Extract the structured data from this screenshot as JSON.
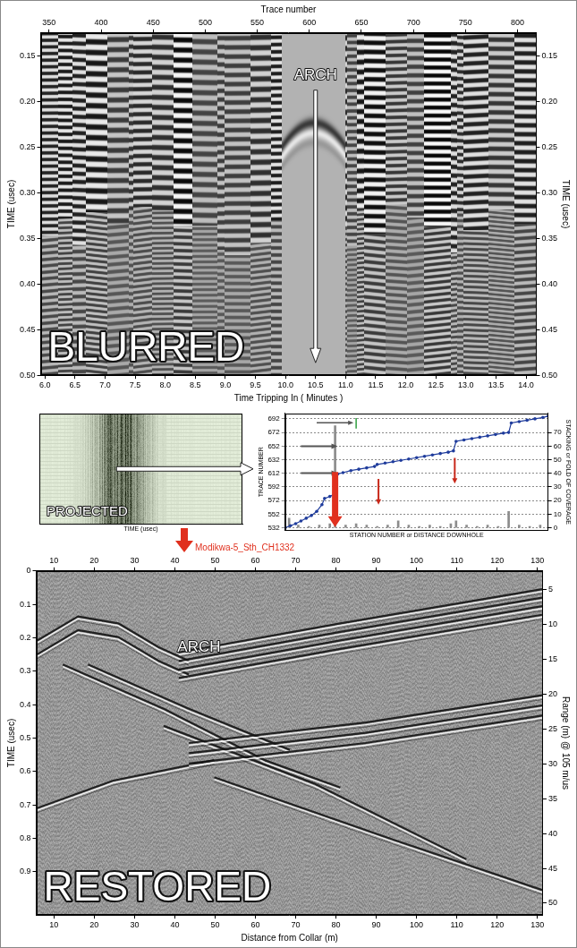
{
  "chart_data": [
    {
      "type": "image",
      "title": "BLURRED",
      "x_label": "Time Tripping In ( Minutes )",
      "x2_label": "Trace number",
      "y_label": "TIME (usec)",
      "y2_label": "TIME (usec)",
      "xlim": [
        5.93,
        14.17
      ],
      "xticks": [
        {
          "value": 6,
          "label": "6.0"
        },
        6.5,
        {
          "value": 7,
          "label": "7.0"
        },
        7.5,
        {
          "value": 8,
          "label": "8.0"
        },
        8.5,
        {
          "value": 9,
          "label": "9.0"
        },
        9.5,
        {
          "value": 10,
          "label": "10.0"
        },
        10.5,
        {
          "value": 11,
          "label": "11.0"
        },
        11.5,
        {
          "value": 12,
          "label": "12.0"
        },
        12.5,
        {
          "value": 13,
          "label": "13.0"
        },
        13.5,
        {
          "value": 14,
          "label": "14.0"
        }
      ],
      "x2lim": [
        342,
        818
      ],
      "x2ticks": [
        350,
        400,
        450,
        500,
        550,
        600,
        650,
        700,
        750,
        800
      ],
      "ylim": [
        0.125,
        0.5
      ],
      "yticks": [
        0.15,
        {
          "value": 0.2,
          "label": "0.20"
        },
        0.25,
        {
          "value": 0.3,
          "label": "0.30"
        },
        0.35,
        {
          "value": 0.4,
          "label": "0.40"
        },
        0.45,
        {
          "value": 0.5,
          "label": "0.50"
        }
      ],
      "y2lim": [
        0.125,
        0.5
      ],
      "y2ticks": [
        0.15,
        {
          "value": 0.2,
          "label": "0.20"
        },
        0.25,
        {
          "value": 0.3,
          "label": "0.30"
        },
        0.35,
        {
          "value": 0.4,
          "label": "0.40"
        },
        0.45,
        {
          "value": 0.5,
          "label": "0.50"
        }
      ],
      "annotations": [
        {
          "text": "ARCH",
          "x": 10.5,
          "y": 0.172
        }
      ]
    },
    {
      "type": "image",
      "title": "PROJECTED",
      "x_label": "TIME (usec)",
      "tick_labels": false
    },
    {
      "type": "line",
      "x_label": "STATION NUMBER or DISTANCE DOWNHOLE",
      "y_label": "TRACE NUMBER",
      "y2_label": "STACKING or FOLD OF COVERAGE",
      "xlim": [
        0,
        100
      ],
      "ylim": [
        528,
        700
      ],
      "yticks": [
        532,
        552,
        572,
        592,
        612,
        632,
        652,
        672,
        692
      ],
      "y2lim": [
        -2,
        84
      ],
      "y2ticks": [
        0,
        10,
        20,
        30,
        40,
        50,
        60,
        70
      ],
      "grid": true,
      "series": [
        {
          "type": "line",
          "color": "#1f3c9c",
          "marker": "circle",
          "x": [
            0,
            2,
            4,
            6,
            8,
            10,
            12,
            14,
            15,
            17,
            19,
            20,
            22,
            25,
            28,
            31,
            34,
            35,
            38,
            41,
            44,
            47,
            50,
            53,
            56,
            59,
            62,
            64,
            65,
            68,
            71,
            74,
            77,
            80,
            83,
            85,
            86,
            89,
            92,
            95,
            98,
            100
          ],
          "values": [
            532,
            535,
            538,
            542,
            546,
            550,
            556,
            566,
            575,
            578,
            582,
            611,
            613,
            616,
            618,
            620,
            622,
            625,
            627,
            629,
            631,
            633,
            635,
            637,
            639,
            641,
            643,
            645,
            659,
            661,
            663,
            665,
            667,
            669,
            671,
            672,
            686,
            688,
            690,
            692,
            694,
            696
          ]
        },
        {
          "type": "bar",
          "axis": "y2",
          "color": "#8c8c8c",
          "x": [
            1.5,
            5,
            9,
            13,
            17,
            19,
            23,
            27,
            31,
            35,
            39,
            43,
            47,
            51,
            55,
            59,
            63,
            65,
            69,
            73,
            77,
            81,
            85,
            89,
            93,
            97
          ],
          "values": [
            7,
            2,
            1,
            2,
            3,
            75,
            2,
            3,
            2,
            1,
            2,
            5,
            2,
            1,
            2,
            1,
            3,
            5,
            2,
            1,
            2,
            1,
            12,
            2,
            1,
            2
          ]
        }
      ]
    },
    {
      "type": "image",
      "title": "RESTORED",
      "subtitle": "Modikwa-5_Sth_CH1332",
      "x_label": "Distance from Collar (m)",
      "y_label": "TIME (usec)",
      "y2_label": "Range (m) @ 105 m/us",
      "xlim": [
        5.6,
        131.4
      ],
      "xticks": [
        10,
        20,
        30,
        40,
        50,
        60,
        70,
        80,
        90,
        100,
        110,
        120,
        130
      ],
      "x2lim": [
        5.6,
        131.4
      ],
      "x2ticks": [
        10,
        20,
        30,
        40,
        50,
        60,
        70,
        80,
        90,
        100,
        110,
        120,
        130
      ],
      "ylim": [
        0,
        1.03
      ],
      "yticks": [
        0,
        0.1,
        0.2,
        0.3,
        0.4,
        0.5,
        0.6,
        0.7,
        0.8,
        0.9
      ],
      "y2lim": [
        2.3,
        51.7
      ],
      "y2ticks": [
        5,
        10,
        15,
        20,
        25,
        30,
        35,
        40,
        45,
        50
      ],
      "annotations": [
        {
          "text": "ARCH",
          "x": 46,
          "y": 0.23
        }
      ]
    }
  ]
}
